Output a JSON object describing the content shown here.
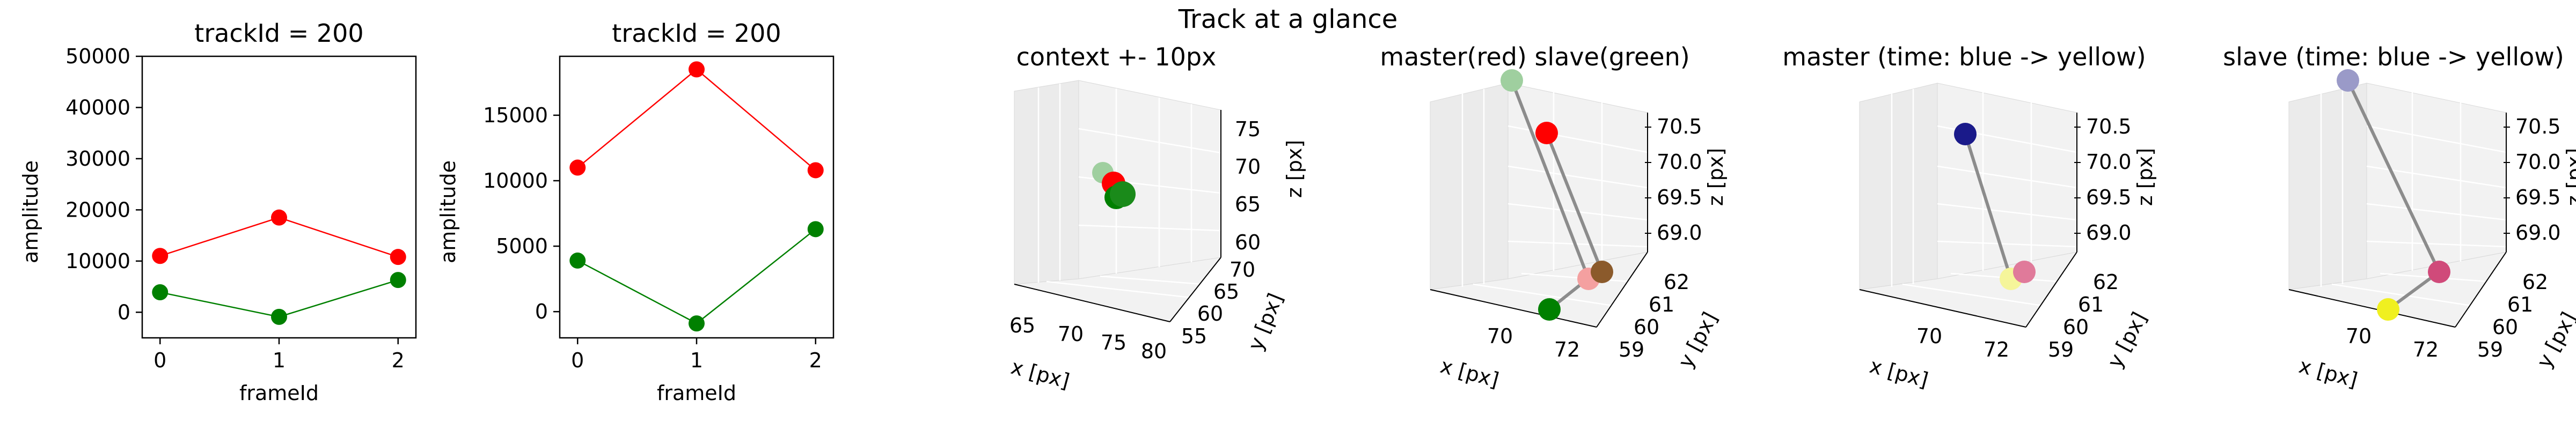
{
  "figure": {
    "suptitle": "Track at a glance"
  },
  "chart_data": [
    {
      "type": "line",
      "title": "trackId = 200",
      "xlabel": "frameId",
      "ylabel": "amplitude",
      "x": [
        0,
        1,
        2
      ],
      "xticks": [
        0,
        1,
        2
      ],
      "xlim": [
        -0.15,
        2.15
      ],
      "ylim": [
        -5000,
        50000
      ],
      "yticks": [
        0,
        10000,
        20000,
        30000,
        40000,
        50000
      ],
      "grid": false,
      "series": [
        {
          "color": "#ff0000",
          "values": [
            11000,
            18500,
            10800
          ]
        },
        {
          "color": "#008000",
          "values": [
            3900,
            -900,
            6300
          ]
        }
      ]
    },
    {
      "type": "line",
      "title": "trackId = 200",
      "xlabel": "frameId",
      "ylabel": "amplitude",
      "x": [
        0,
        1,
        2
      ],
      "xticks": [
        0,
        1,
        2
      ],
      "xlim": [
        -0.15,
        2.15
      ],
      "ylim": [
        -2000,
        19500
      ],
      "yticks": [
        0,
        5000,
        10000,
        15000
      ],
      "grid": false,
      "series": [
        {
          "color": "#ff0000",
          "values": [
            11000,
            18500,
            10800
          ]
        },
        {
          "color": "#008000",
          "values": [
            3900,
            -900,
            6300
          ]
        }
      ]
    },
    {
      "type": "scatter",
      "projection": "3d",
      "title": "context +- 10px",
      "xlabel": "x [px]",
      "ylabel": "y [px]",
      "zlabel": "z [px]",
      "xticks": [
        "65",
        "70",
        "75",
        "80"
      ],
      "yticks": [
        "55",
        "60",
        "65",
        "70"
      ],
      "zticks": [
        "60",
        "65",
        "70",
        "75"
      ],
      "points": [
        {
          "color": "#9fcf9f"
        },
        {
          "color": "#ff0000"
        },
        {
          "color": "#008000"
        },
        {
          "color": "#1a8a1a"
        }
      ]
    },
    {
      "type": "scatter",
      "projection": "3d",
      "title": "master(red) slave(green)",
      "xlabel": "x [px]",
      "ylabel": "y [px]",
      "zlabel": "z [px]",
      "xticks": [
        "70",
        "72"
      ],
      "yticks": [
        "59",
        "60",
        "61",
        "62"
      ],
      "zticks": [
        "69.0",
        "69.5",
        "70.0",
        "70.5"
      ],
      "points": [
        {
          "color": "#9fcf9f"
        },
        {
          "color": "#ff0000"
        },
        {
          "color": "#f4a0a0"
        },
        {
          "color": "#8b5a2b"
        },
        {
          "color": "#008000"
        }
      ]
    },
    {
      "type": "scatter",
      "projection": "3d",
      "title": "master (time: blue -> yellow)",
      "xlabel": "x [px]",
      "ylabel": "y [px]",
      "zlabel": "z [px]",
      "xticks": [
        "70",
        "72"
      ],
      "yticks": [
        "59",
        "60",
        "61",
        "62"
      ],
      "zticks": [
        "69.0",
        "69.5",
        "70.0",
        "70.5"
      ],
      "points": [
        {
          "color": "#1a1a8a"
        },
        {
          "color": "#f5f59a"
        },
        {
          "color": "#e07a9a"
        }
      ]
    },
    {
      "type": "scatter",
      "projection": "3d",
      "title": "slave (time: blue -> yellow)",
      "xlabel": "x [px]",
      "ylabel": "y [px]",
      "zlabel": "z [px]",
      "xticks": [
        "70",
        "72"
      ],
      "yticks": [
        "59",
        "60",
        "61",
        "62"
      ],
      "zticks": [
        "69.0",
        "69.5",
        "70.0",
        "70.5"
      ],
      "points": [
        {
          "color": "#9a9ac8"
        },
        {
          "color": "#d04a7a"
        },
        {
          "color": "#f0f020"
        }
      ]
    }
  ]
}
